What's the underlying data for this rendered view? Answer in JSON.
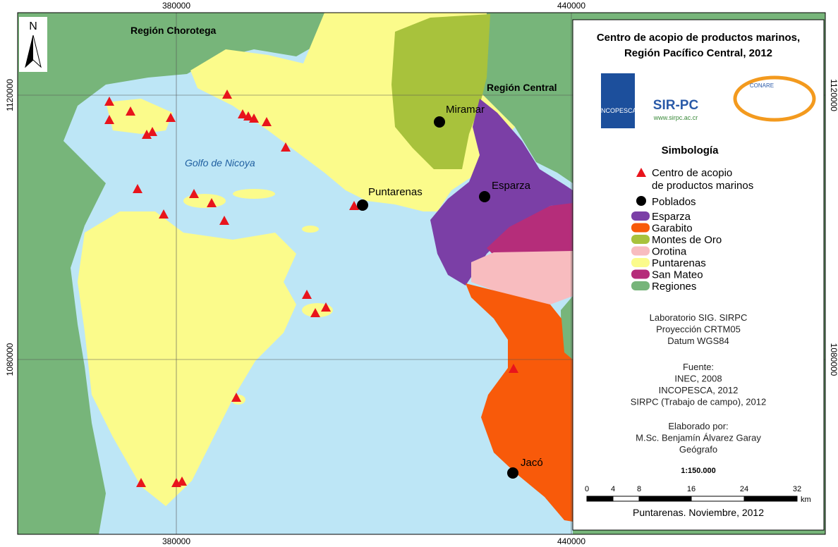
{
  "map": {
    "title": [
      "Centro de acopio de productos marinos,",
      "Región Pacífico Central, 2012"
    ],
    "north": "N",
    "coords": {
      "x": [
        "380000",
        "440000"
      ],
      "y": [
        "1120000",
        "1080000"
      ]
    },
    "regions": [
      "Región  Chorotega",
      "Región Central"
    ],
    "sea": "Golfo de Nicoya",
    "towns": [
      "Miramar",
      "Puntarenas",
      "Esparza",
      "Jacó"
    ]
  },
  "logos": {
    "sirpc": "SIR-PC",
    "url": "www.sirpc.ac.cr",
    "incopesca": "INCOPESCA",
    "conare": "CONARE"
  },
  "legend": {
    "heading": "Simbología",
    "symbols": [
      "Centro de acopio\nde productos marinos",
      "Poblados"
    ],
    "items": [
      {
        "name": "Esparza",
        "color": "#7b3fa6"
      },
      {
        "name": "Garabito",
        "color": "#f85a0a"
      },
      {
        "name": "Montes de Oro",
        "color": "#a8c23c"
      },
      {
        "name": "Orotina",
        "color": "#f8bcbf"
      },
      {
        "name": "Puntarenas",
        "color": "#fbfb8b"
      },
      {
        "name": "San Mateo",
        "color": "#b52d7a"
      },
      {
        "name": "Regiones",
        "color": "#77b57a"
      }
    ]
  },
  "credits": {
    "lab": [
      "Laboratorio SIG. SIRPC",
      "Proyección CRTM05",
      "Datum WGS84"
    ],
    "source": [
      "Fuente:",
      "INEC, 2008",
      "INCOPESCA, 2012",
      "SIRPC (Trabajo de campo), 2012"
    ],
    "author": [
      "Elaborado por:",
      "M.Sc. Benjamín Álvarez Garay",
      "Geógrafo"
    ]
  },
  "scale": {
    "ratio": "1:150.000",
    "ticks": [
      "0",
      "4",
      "8",
      "16",
      "24",
      "32"
    ],
    "unit": "km"
  },
  "footer": "Puntarenas. Noviembre, 2012"
}
